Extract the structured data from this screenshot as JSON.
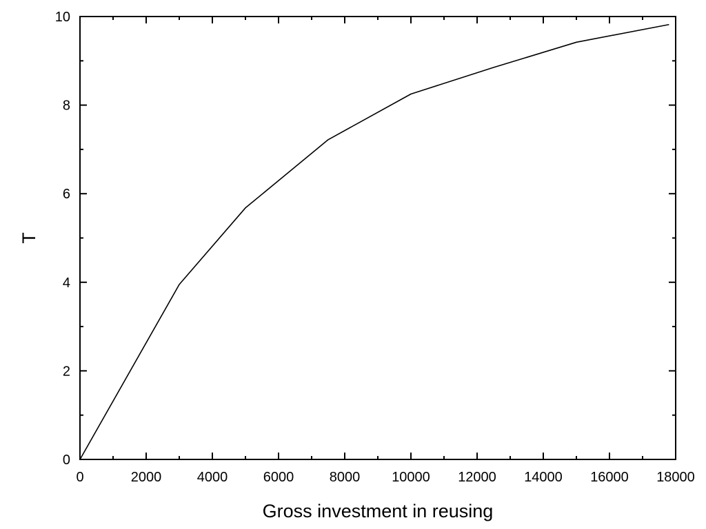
{
  "chart_data": {
    "type": "line",
    "title": "",
    "xlabel": "Gross investment in reusing",
    "ylabel": "T",
    "xlim": [
      0,
      18000
    ],
    "ylim": [
      0,
      10
    ],
    "x_ticks": [
      0,
      2000,
      4000,
      6000,
      8000,
      10000,
      12000,
      14000,
      16000,
      18000
    ],
    "y_ticks": [
      0,
      2,
      4,
      6,
      8,
      10
    ],
    "x_tick_labels": [
      "0",
      "2000",
      "4000",
      "6000",
      "8000",
      "10000",
      "12000",
      "14000",
      "16000",
      "18000"
    ],
    "y_tick_labels": [
      "0",
      "2",
      "4",
      "6",
      "8",
      "10"
    ],
    "grid": false,
    "legend": "none",
    "series": [
      {
        "color": "#000000",
        "x": [
          0,
          3000,
          5000,
          7500,
          10000,
          12500,
          15000,
          17800
        ],
        "y": [
          0,
          3.95,
          5.68,
          7.22,
          8.25,
          8.85,
          9.42,
          9.82
        ]
      }
    ]
  }
}
